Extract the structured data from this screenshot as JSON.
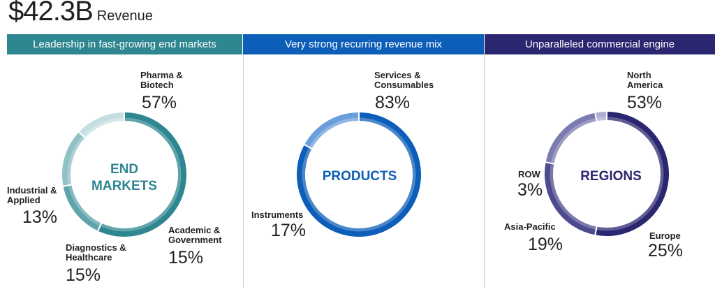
{
  "header": {
    "amount": "$42.3B",
    "label": "Revenue"
  },
  "banners": {
    "end_markets": "Leadership in fast-growing end markets",
    "recurring": "Very strong recurring revenue mix",
    "commercial": "Unparalleled commercial engine"
  },
  "colors": {
    "teal": "#2e8690",
    "blue": "#0d5eb8",
    "navy": "#2b2670"
  },
  "chart_data": [
    {
      "type": "pie",
      "center_label": [
        "END",
        "MARKETS"
      ],
      "slices": [
        {
          "label": "Pharma & Biotech",
          "value": 57,
          "display": "57%",
          "color": "#2e8690"
        },
        {
          "label": "Academic & Government",
          "value": 15,
          "display": "15%",
          "color": "#5ea4aa"
        },
        {
          "label": "Diagnostics & Healthcare",
          "value": 15,
          "display": "15%",
          "color": "#8fc1c5"
        },
        {
          "label": "Industrial & Applied",
          "value": 13,
          "display": "13%",
          "color": "#c4dfe1"
        }
      ]
    },
    {
      "type": "pie",
      "center_label": [
        "PRODUCTS"
      ],
      "slices": [
        {
          "label": "Services & Consumables",
          "value": 83,
          "display": "83%",
          "color": "#0d5eb8"
        },
        {
          "label": "Instruments",
          "value": 17,
          "display": "17%",
          "color": "#6a9edd"
        }
      ]
    },
    {
      "type": "pie",
      "center_label": [
        "REGIONS"
      ],
      "slices": [
        {
          "label": "North America",
          "value": 53,
          "display": "53%",
          "color": "#2b2670"
        },
        {
          "label": "Europe",
          "value": 25,
          "display": "25%",
          "color": "#4d4b8e"
        },
        {
          "label": "Asia-Pacific",
          "value": 19,
          "display": "19%",
          "color": "#7c7bb0"
        },
        {
          "label": "ROW",
          "value": 3,
          "display": "3%",
          "color": "#aeadd0"
        }
      ]
    }
  ]
}
